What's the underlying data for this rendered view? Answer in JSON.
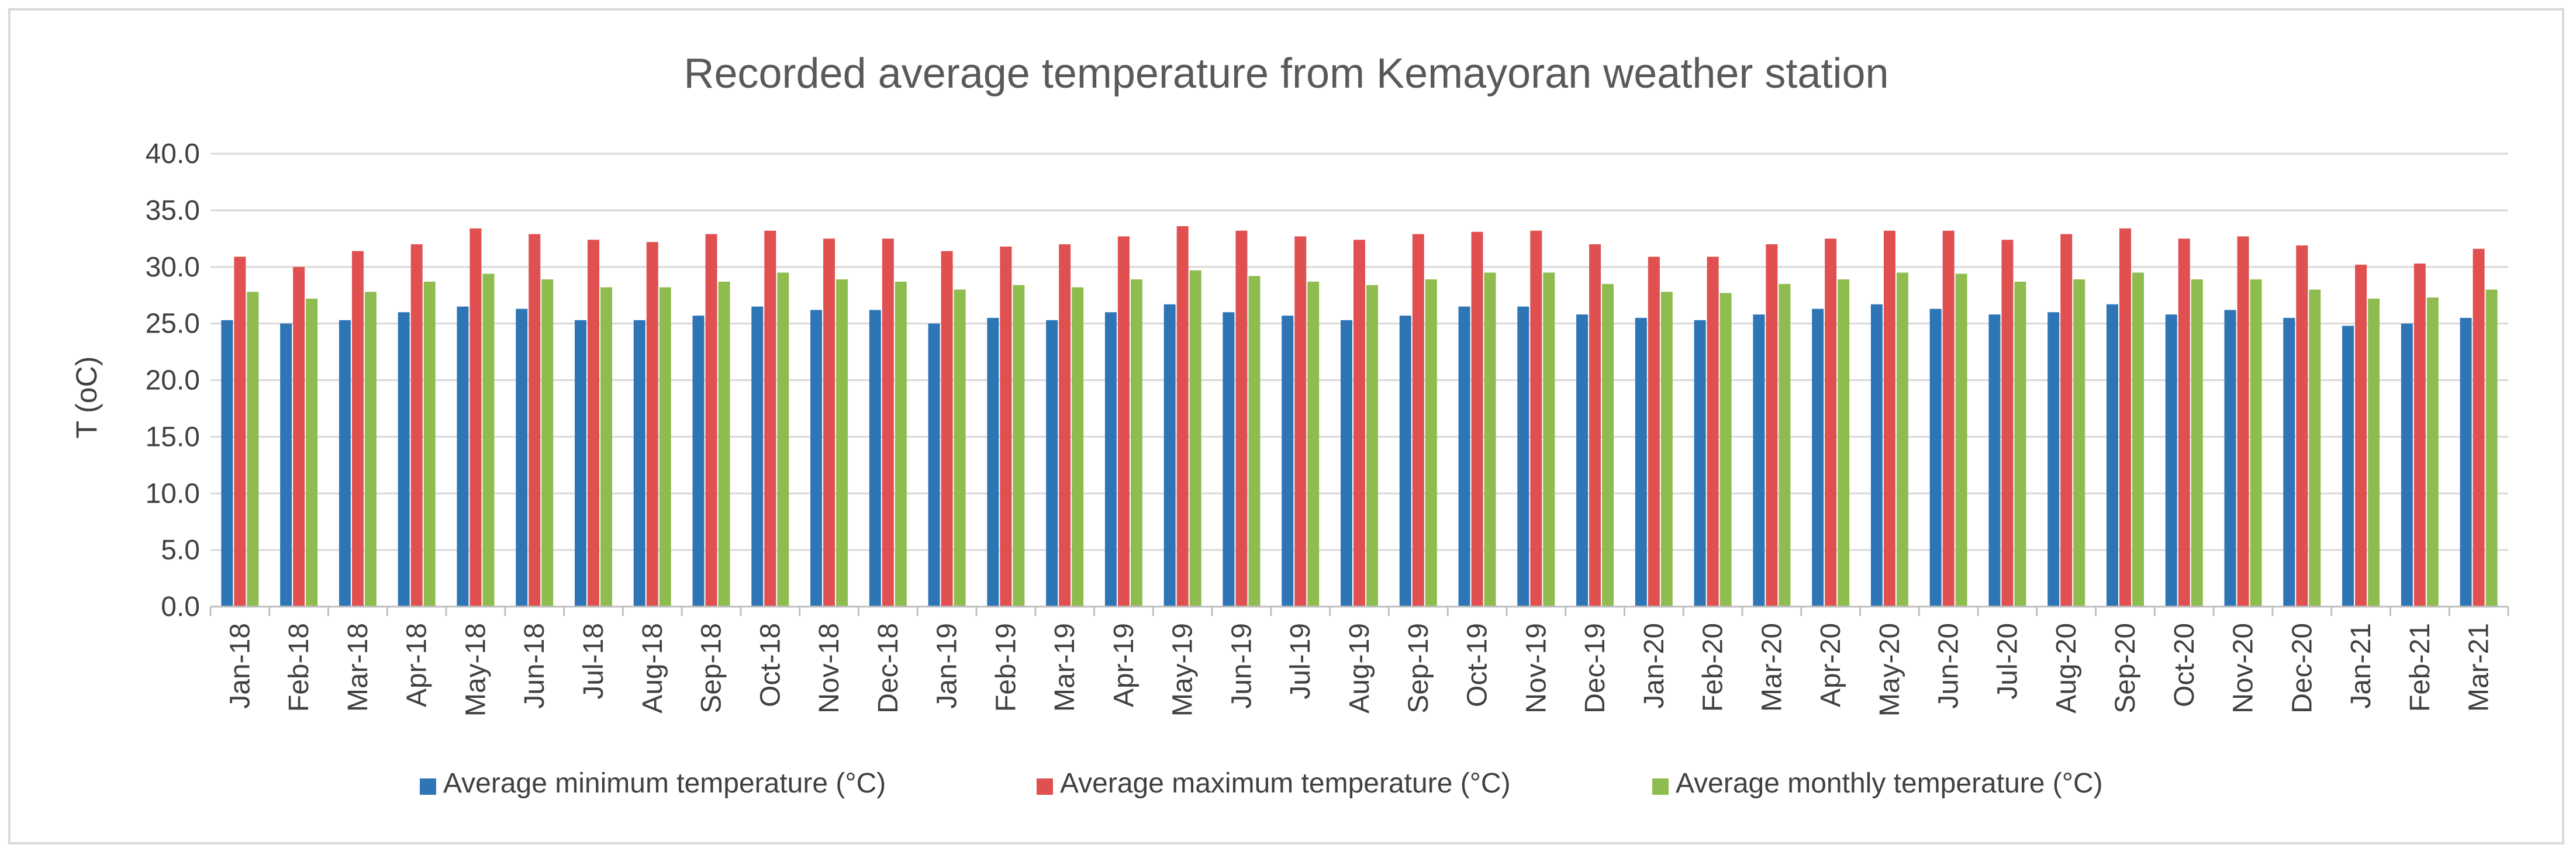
{
  "chart_data": {
    "type": "bar",
    "title": "Recorded average temperature from Kemayoran weather station",
    "xlabel": "",
    "ylabel": "T (oC)",
    "ylim": [
      0,
      40
    ],
    "ytick_step": 5,
    "ytick_labels": [
      "0.0",
      "5.0",
      "10.0",
      "15.0",
      "20.0",
      "25.0",
      "30.0",
      "35.0",
      "40.0"
    ],
    "grid": true,
    "legend_position": "bottom",
    "categories": [
      "Jan-18",
      "Feb-18",
      "Mar-18",
      "Apr-18",
      "May-18",
      "Jun-18",
      "Jul-18",
      "Aug-18",
      "Sep-18",
      "Oct-18",
      "Nov-18",
      "Dec-18",
      "Jan-19",
      "Feb-19",
      "Mar-19",
      "Apr-19",
      "May-19",
      "Jun-19",
      "Jul-19",
      "Aug-19",
      "Sep-19",
      "Oct-19",
      "Nov-19",
      "Dec-19",
      "Jan-20",
      "Feb-20",
      "Mar-20",
      "Apr-20",
      "May-20",
      "Jun-20",
      "Jul-20",
      "Aug-20",
      "Sep-20",
      "Oct-20",
      "Nov-20",
      "Dec-20",
      "Jan-21",
      "Feb-21",
      "Mar-21"
    ],
    "series": [
      {
        "name": "Average minimum temperature (°C)",
        "color": "#2e75b6",
        "values": [
          25.3,
          25.0,
          25.3,
          26.0,
          26.5,
          26.3,
          25.3,
          25.3,
          25.7,
          26.5,
          26.2,
          26.2,
          25.0,
          25.5,
          25.3,
          26.0,
          26.7,
          26.0,
          25.7,
          25.3,
          25.7,
          26.5,
          26.5,
          25.8,
          25.5,
          25.3,
          25.8,
          26.3,
          26.7,
          26.3,
          25.8,
          26.0,
          26.7,
          25.8,
          26.2,
          25.5,
          24.8,
          25.0,
          25.5
        ]
      },
      {
        "name": "Average maximum temperature (°C)",
        "color": "#e05050",
        "values": [
          30.9,
          30.0,
          31.4,
          32.0,
          33.4,
          32.9,
          32.4,
          32.2,
          32.9,
          33.2,
          32.5,
          32.5,
          31.4,
          31.8,
          32.0,
          32.7,
          33.6,
          33.2,
          32.7,
          32.4,
          32.9,
          33.1,
          33.2,
          32.0,
          30.9,
          30.9,
          32.0,
          32.5,
          33.2,
          33.2,
          32.4,
          32.9,
          33.4,
          32.5,
          32.7,
          31.9,
          30.2,
          30.3,
          31.6
        ]
      },
      {
        "name": "Average monthly temperature (°C)",
        "color": "#8fbc4f",
        "values": [
          27.8,
          27.2,
          27.8,
          28.7,
          29.4,
          28.9,
          28.2,
          28.2,
          28.7,
          29.5,
          28.9,
          28.7,
          28.0,
          28.4,
          28.2,
          28.9,
          29.7,
          29.2,
          28.7,
          28.4,
          28.9,
          29.5,
          29.5,
          28.5,
          27.8,
          27.7,
          28.5,
          28.9,
          29.5,
          29.4,
          28.7,
          28.9,
          29.5,
          28.9,
          28.9,
          28.0,
          27.2,
          27.3,
          28.0
        ]
      }
    ]
  }
}
